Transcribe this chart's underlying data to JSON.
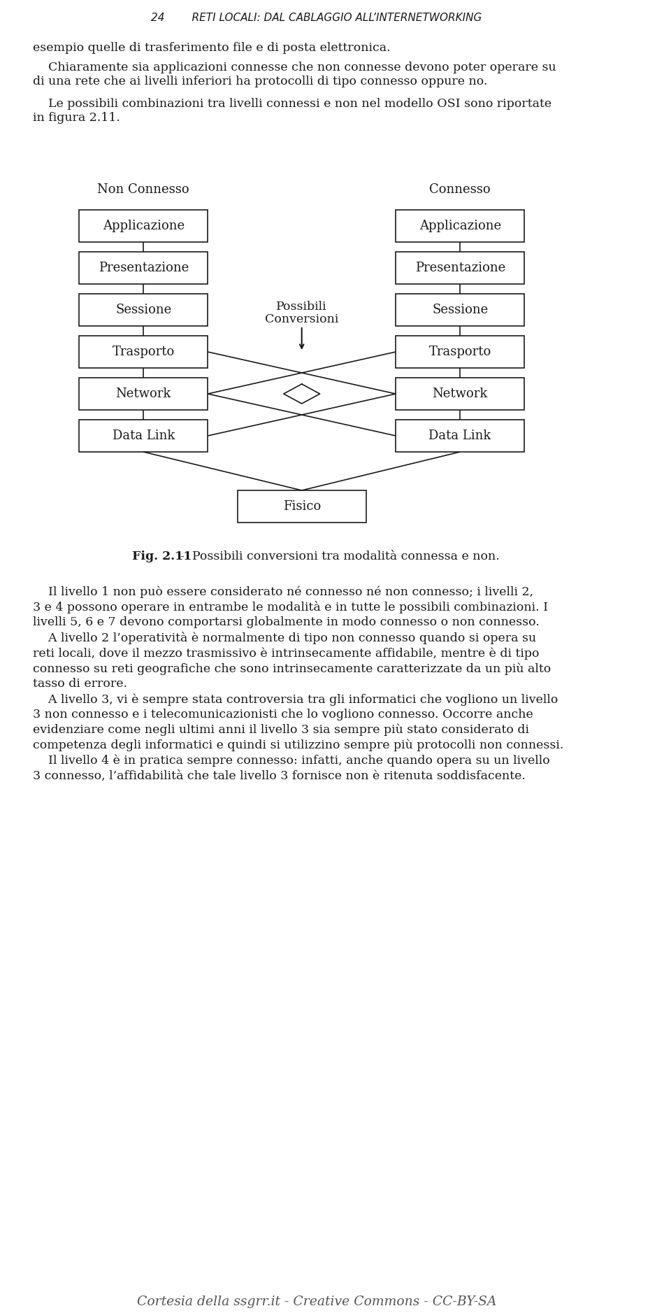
{
  "title_header": "24        RETI LOCALI: DAL CABLAGGIO ALL’INTERNETWORKING",
  "para1": "esempio quelle di trasferimento file e di posta elettronica.",
  "para2": "    Chiaramente sia applicazioni connesse che non connesse devono poter operare su\ndi una rete che ai livelli inferiori ha protocolli di tipo connesso oppure no.",
  "para3": "    Le possibili combinazioni tra livelli connessi e non nel modello OSI sono riportate\nin figura 2.11.",
  "col_left_label": "Non Connesso",
  "col_right_label": "Connesso",
  "middle_label_line1": "Possibili",
  "middle_label_line2": "Conversioni",
  "boxes_left": [
    "Applicazione",
    "Presentazione",
    "Sessione",
    "Trasporto",
    "Network",
    "Data Link"
  ],
  "boxes_right": [
    "Applicazione",
    "Presentazione",
    "Sessione",
    "Trasporto",
    "Network",
    "Data Link"
  ],
  "box_bottom": "Fisico",
  "fig_caption_bold": "Fig. 2.11",
  "fig_caption_rest": "  -  Possibili conversioni tra modalità connessa e non.",
  "body_text": [
    "    Il livello 1 non può essere considerato né connesso né non connesso; i livelli 2,",
    "3 e 4 possono operare in entrambe le modalità e in tutte le possibili combinazioni. I",
    "livelli 5, 6 e 7 devono comportarsi globalmente in modo connesso o non connesso.",
    "    A livello 2 l’operatività è normalmente di tipo non connesso quando si opera su",
    "reti locali, dove il mezzo trasmissivo è intrinsecamente affidabile, mentre è di tipo",
    "connesso su reti geografiche che sono intrinsecamente caratterizzate da un più alto",
    "tasso di errore.",
    "    A livello 3, vi è sempre stata controversia tra gli informatici che vogliono un livello",
    "3 non connesso e i telecomunicazionisti che lo vogliono connesso. Occorre anche",
    "evidenziare come negli ultimi anni il livello 3 sia sempre più stato considerato di",
    "competenza degli informatici e quindi si utilizzino sempre più protocolli non connessi.",
    "    Il livello 4 è in pratica sempre connesso: infatti, anche quando opera su un livello",
    "3 connesso, l’affidabilità che tale livello 3 fornisce non è ritenuta soddisfacente."
  ],
  "footer": "Cortesia della ssgrr.it - Creative Commons - CC-BY-SA",
  "bg_color": "#ffffff",
  "text_color": "#1a1a1a",
  "box_edge_color": "#1a1a1a",
  "line_color": "#1a1a1a"
}
